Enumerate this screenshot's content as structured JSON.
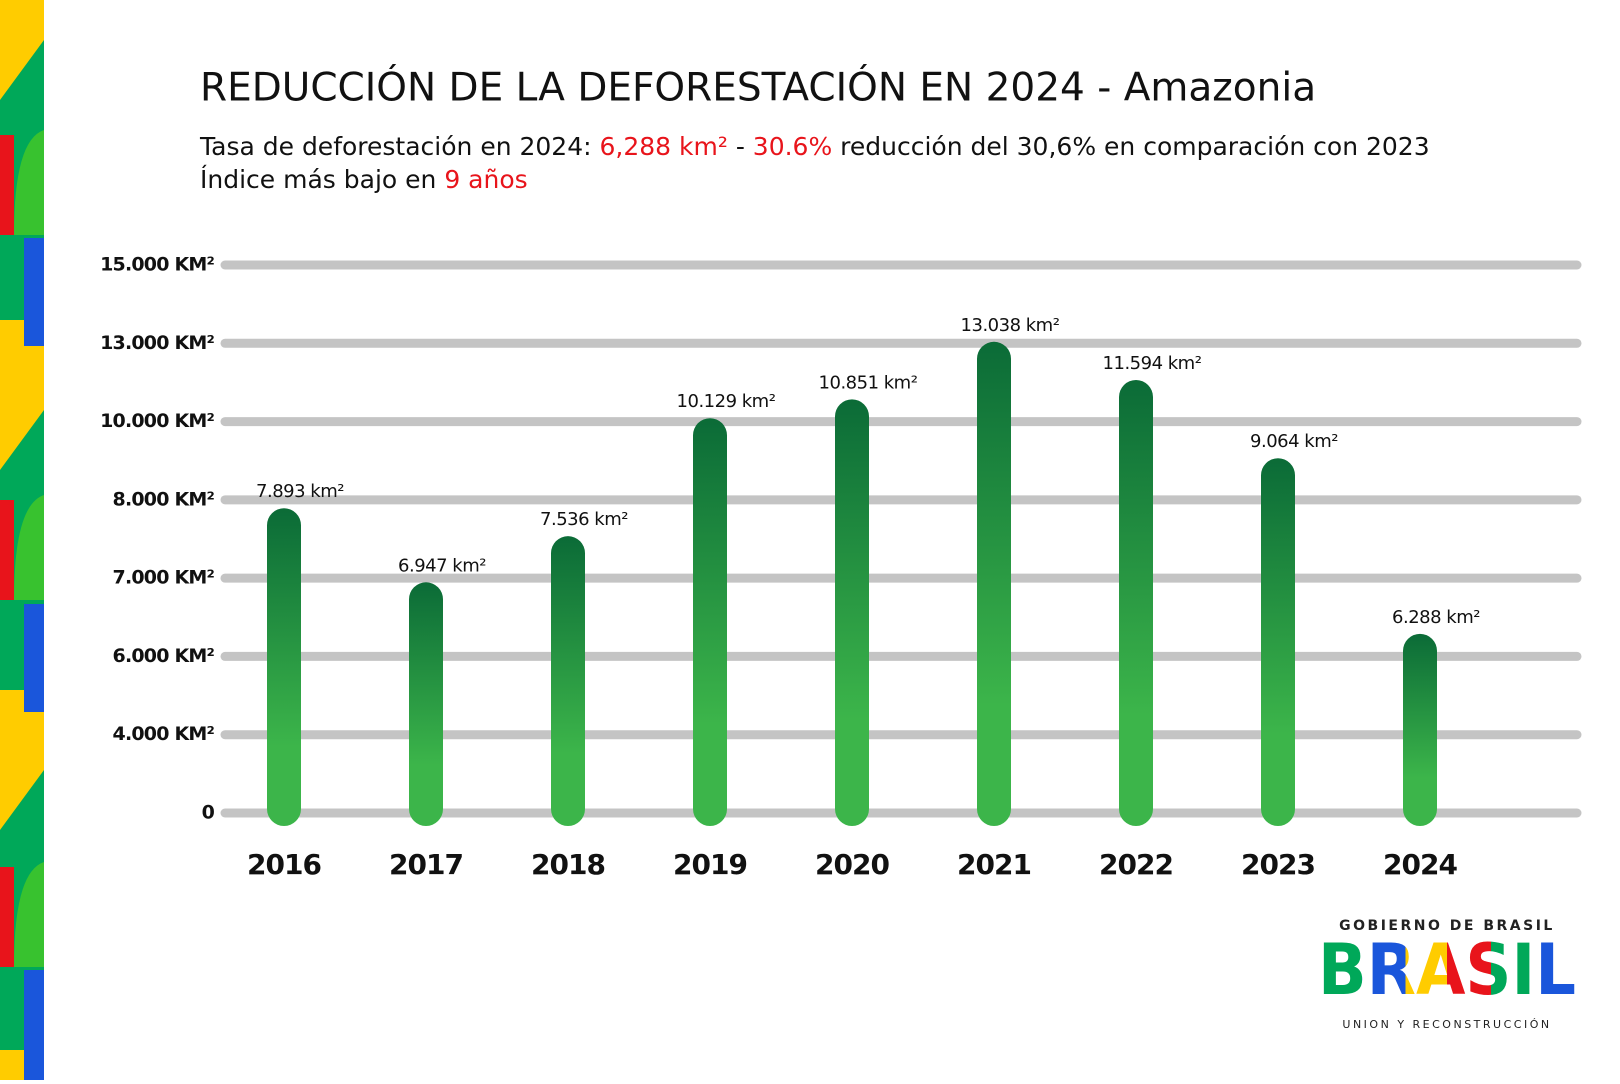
{
  "chart_data": {
    "type": "bar",
    "title": "REDUCCIÓN DE LA DEFORESTACIÓN EN 2024 - Amazonia",
    "subtitle": [
      [
        {
          "text": "Tasa de deforestación en 2024: ",
          "color": "#111111"
        },
        {
          "text": "6,288 km²",
          "color": "#e8141b"
        },
        {
          "text": " - ",
          "color": "#111111"
        },
        {
          "text": "30.6%",
          "color": "#e8141b"
        },
        {
          "text": " reducción del 30,6% en comparación con 2023",
          "color": "#111111"
        }
      ],
      [
        {
          "text": "Índice más bajo en ",
          "color": "#111111"
        },
        {
          "text": "9 años",
          "color": "#e8141b"
        }
      ]
    ],
    "categories": [
      "2016",
      "2017",
      "2018",
      "2019",
      "2020",
      "2021",
      "2022",
      "2023",
      "2024"
    ],
    "values": [
      7893,
      6947,
      7536,
      10129,
      10851,
      13038,
      11594,
      9064,
      6288
    ],
    "value_labels": [
      "7.893 km²",
      "6.947 km²",
      "7.536 km²",
      "10.129 km²",
      "10.851 km²",
      "13.038 km²",
      "11.594 km²",
      "9.064 km²",
      "6.288 km²"
    ],
    "colors": [
      "#0b6b37",
      "#3cb54a"
    ],
    "ylim": [
      0,
      15000
    ],
    "yticks": [
      0,
      {
        "value": 4000,
        "label": "4.000 KM²"
      },
      {
        "value": 6000,
        "label": "6.000 KM²"
      },
      {
        "value": 7000,
        "label": "7.000 KM²"
      },
      {
        "value": 8000,
        "label": "8.000 KM²"
      },
      {
        "value": 10000,
        "label": "10.000 KM²"
      },
      {
        "value": 13000,
        "label": "13.000 KM²"
      },
      {
        "value": 15000,
        "label": "15.000 KM²"
      }
    ],
    "grid": true
  },
  "logo": {
    "top": "GOBIERNO DE BRASIL",
    "word": "BRASIL",
    "bottom": "UNION Y RECONSTRUCCIÓN"
  }
}
